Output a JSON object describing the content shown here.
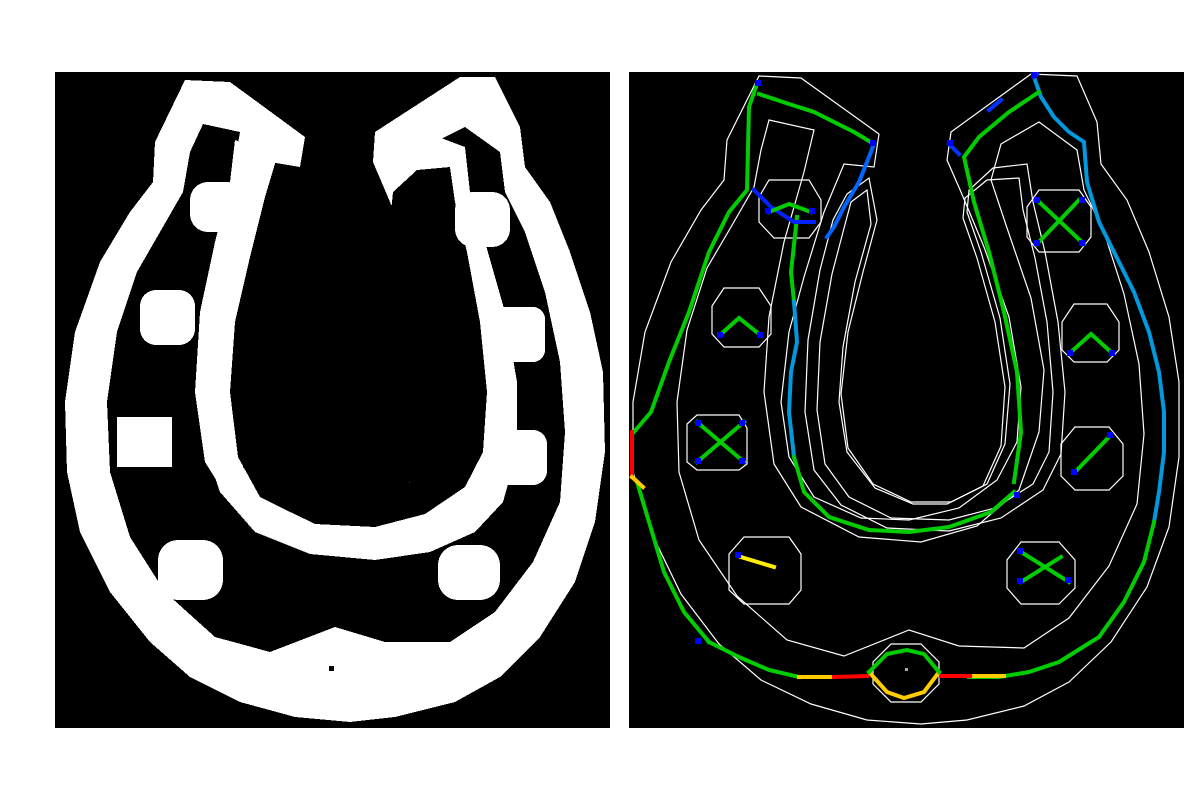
{
  "figure": {
    "panels": [
      {
        "id": "binary-mask",
        "kind": "binary-shape-mask",
        "foreground": "#ffffff",
        "background": "#000000"
      },
      {
        "id": "skeleton-overlay",
        "kind": "medial-axis-heatmap",
        "contour_color": "#ffffff",
        "colormap": [
          "#0000ff",
          "#00aaff",
          "#00dd00",
          "#ffff00",
          "#ff8800",
          "#ff0000"
        ]
      }
    ],
    "shape": "horseshoe",
    "nail_holes": 8
  }
}
